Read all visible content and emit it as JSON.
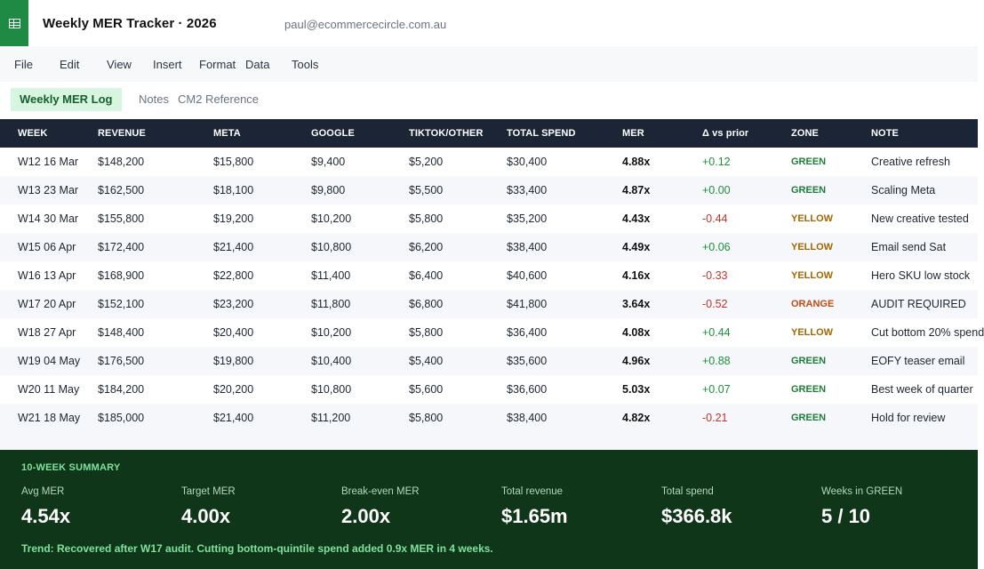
{
  "app": {
    "title": "Weekly MER Tracker · 2026",
    "user_email": "paul@ecommercecircle.com.au",
    "accent": "#1e8a44"
  },
  "menu": [
    "File",
    "Edit",
    "View",
    "Insert",
    "Format",
    "Data",
    "Tools"
  ],
  "tabs": [
    {
      "label": "Weekly MER Log",
      "active": true
    },
    {
      "label": "Notes",
      "active": false
    },
    {
      "label": "CM2 Reference",
      "active": false
    }
  ],
  "table": {
    "columns": [
      "WEEK",
      "REVENUE",
      "META",
      "GOOGLE",
      "TIKTOK/OTHER",
      "TOTAL SPEND",
      "MER",
      "Δ vs prior",
      "ZONE",
      "NOTE"
    ],
    "rows": [
      {
        "week": "W12 16 Mar",
        "revenue": "$148,200",
        "meta": "$15,800",
        "google": "$9,400",
        "tiktok": "$5,200",
        "total": "$30,400",
        "mer": "4.88x",
        "delta": "+0.12",
        "zone": "GREEN",
        "note": "Creative refresh"
      },
      {
        "week": "W13 23 Mar",
        "revenue": "$162,500",
        "meta": "$18,100",
        "google": "$9,800",
        "tiktok": "$5,500",
        "total": "$33,400",
        "mer": "4.87x",
        "delta": "+0.00",
        "zone": "GREEN",
        "note": "Scaling Meta"
      },
      {
        "week": "W14 30 Mar",
        "revenue": "$155,800",
        "meta": "$19,200",
        "google": "$10,200",
        "tiktok": "$5,800",
        "total": "$35,200",
        "mer": "4.43x",
        "delta": "-0.44",
        "zone": "YELLOW",
        "note": "New creative tested"
      },
      {
        "week": "W15 06 Apr",
        "revenue": "$172,400",
        "meta": "$21,400",
        "google": "$10,800",
        "tiktok": "$6,200",
        "total": "$38,400",
        "mer": "4.49x",
        "delta": "+0.06",
        "zone": "YELLOW",
        "note": "Email send Sat"
      },
      {
        "week": "W16 13 Apr",
        "revenue": "$168,900",
        "meta": "$22,800",
        "google": "$11,400",
        "tiktok": "$6,400",
        "total": "$40,600",
        "mer": "4.16x",
        "delta": "-0.33",
        "zone": "YELLOW",
        "note": "Hero SKU low stock"
      },
      {
        "week": "W17 20 Apr",
        "revenue": "$152,100",
        "meta": "$23,200",
        "google": "$11,800",
        "tiktok": "$6,800",
        "total": "$41,800",
        "mer": "3.64x",
        "delta": "-0.52",
        "zone": "ORANGE",
        "note": "AUDIT REQUIRED"
      },
      {
        "week": "W18 27 Apr",
        "revenue": "$148,400",
        "meta": "$20,400",
        "google": "$10,200",
        "tiktok": "$5,800",
        "total": "$36,400",
        "mer": "4.08x",
        "delta": "+0.44",
        "zone": "YELLOW",
        "note": "Cut bottom 20% spend"
      },
      {
        "week": "W19 04 May",
        "revenue": "$176,500",
        "meta": "$19,800",
        "google": "$10,400",
        "tiktok": "$5,400",
        "total": "$35,600",
        "mer": "4.96x",
        "delta": "+0.88",
        "zone": "GREEN",
        "note": "EOFY teaser email"
      },
      {
        "week": "W20 11 May",
        "revenue": "$184,200",
        "meta": "$20,200",
        "google": "$10,800",
        "tiktok": "$5,600",
        "total": "$36,600",
        "mer": "5.03x",
        "delta": "+0.07",
        "zone": "GREEN",
        "note": "Best week of quarter"
      },
      {
        "week": "W21 18 May",
        "revenue": "$185,000",
        "meta": "$21,400",
        "google": "$11,200",
        "tiktok": "$5,800",
        "total": "$38,400",
        "mer": "4.82x",
        "delta": "-0.21",
        "zone": "GREEN",
        "note": "Hold for review"
      }
    ]
  },
  "summary": {
    "title": "10-WEEK SUMMARY",
    "stats": [
      {
        "label": "Avg MER",
        "value": "4.54x"
      },
      {
        "label": "Target MER",
        "value": "4.00x"
      },
      {
        "label": "Break-even MER",
        "value": "2.00x"
      },
      {
        "label": "Total revenue",
        "value": "$1.65m"
      },
      {
        "label": "Total spend",
        "value": "$366.8k"
      },
      {
        "label": "Weeks in GREEN",
        "value": "5 / 10"
      }
    ],
    "trend": "Trend: Recovered after W17 audit. Cutting bottom-quintile spend added 0.9x MER in 4 weeks."
  },
  "colors": {
    "zone_green": "#1e7d35",
    "zone_yellow": "#a06800",
    "zone_orange": "#c84810",
    "delta_positive": "#1f8f3c",
    "delta_negative": "#c0332b",
    "header_bg": "#1c2536",
    "summary_bg": "#10361a"
  }
}
